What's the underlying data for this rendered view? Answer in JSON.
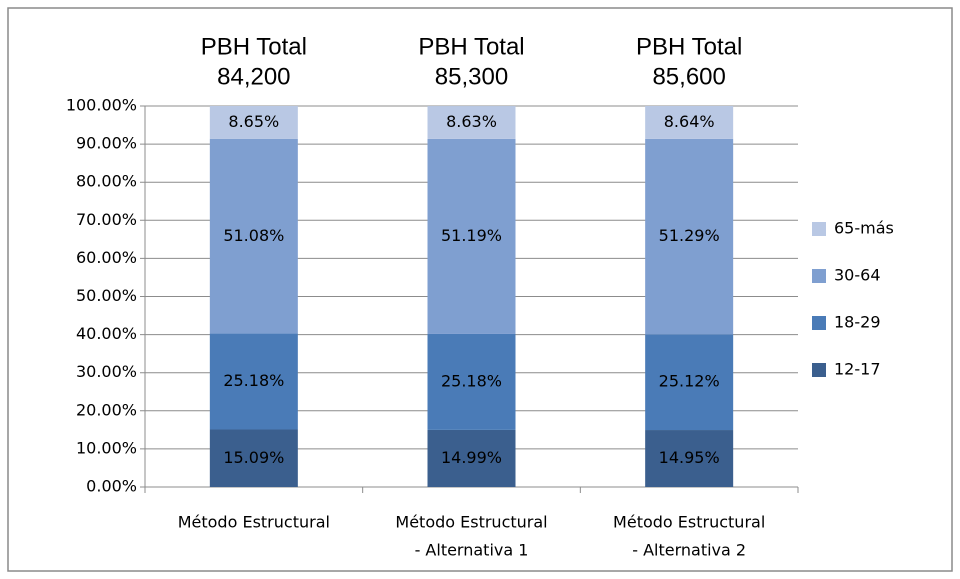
{
  "chart_data": {
    "type": "stacked_bar",
    "categories": [
      [
        "Método Estructural"
      ],
      [
        "Método Estructural",
        "- Alternativa 1"
      ],
      [
        "Método Estructural",
        "- Alternativa 2"
      ]
    ],
    "annotations": [
      {
        "text": "PBH Total",
        "label": "84,200"
      },
      {
        "text": "PBH Total",
        "label": "85,300"
      },
      {
        "text": "PBH Total",
        "label": "85,600"
      }
    ],
    "series": [
      {
        "name": "12-17",
        "color": "#3b5f8e",
        "values": [
          15.09,
          14.99,
          14.95
        ],
        "value_labels": [
          "15.09%",
          "14.99%",
          "14.95%"
        ]
      },
      {
        "name": "18-29",
        "color": "#4a7bb7",
        "values": [
          25.18,
          25.18,
          25.12
        ],
        "value_labels": [
          "25.18%",
          "25.18%",
          "25.12%"
        ]
      },
      {
        "name": "30-64",
        "color": "#7f9fd0",
        "values": [
          51.08,
          51.19,
          51.29
        ],
        "value_labels": [
          "51.08%",
          "51.19%",
          "51.29%"
        ]
      },
      {
        "name": "65-más",
        "color": "#b9c8e4",
        "values": [
          8.65,
          8.63,
          8.64
        ],
        "value_labels": [
          "8.65%",
          "8.63%",
          "8.64%"
        ]
      }
    ],
    "ylim": [
      0,
      100
    ],
    "yticks": [
      {
        "value": 0,
        "label": "0.00%"
      },
      {
        "value": 10,
        "label": "10.00%"
      },
      {
        "value": 20,
        "label": "20.00%"
      },
      {
        "value": 30,
        "label": "30.00%"
      },
      {
        "value": 40,
        "label": "40.00%"
      },
      {
        "value": 50,
        "label": "50.00%"
      },
      {
        "value": 60,
        "label": "60.00%"
      },
      {
        "value": 70,
        "label": "70.00%"
      },
      {
        "value": 80,
        "label": "80.00%"
      },
      {
        "value": 90,
        "label": "90.00%"
      },
      {
        "value": 100,
        "label": "100.00%"
      }
    ],
    "grid": true,
    "legend": "right"
  }
}
